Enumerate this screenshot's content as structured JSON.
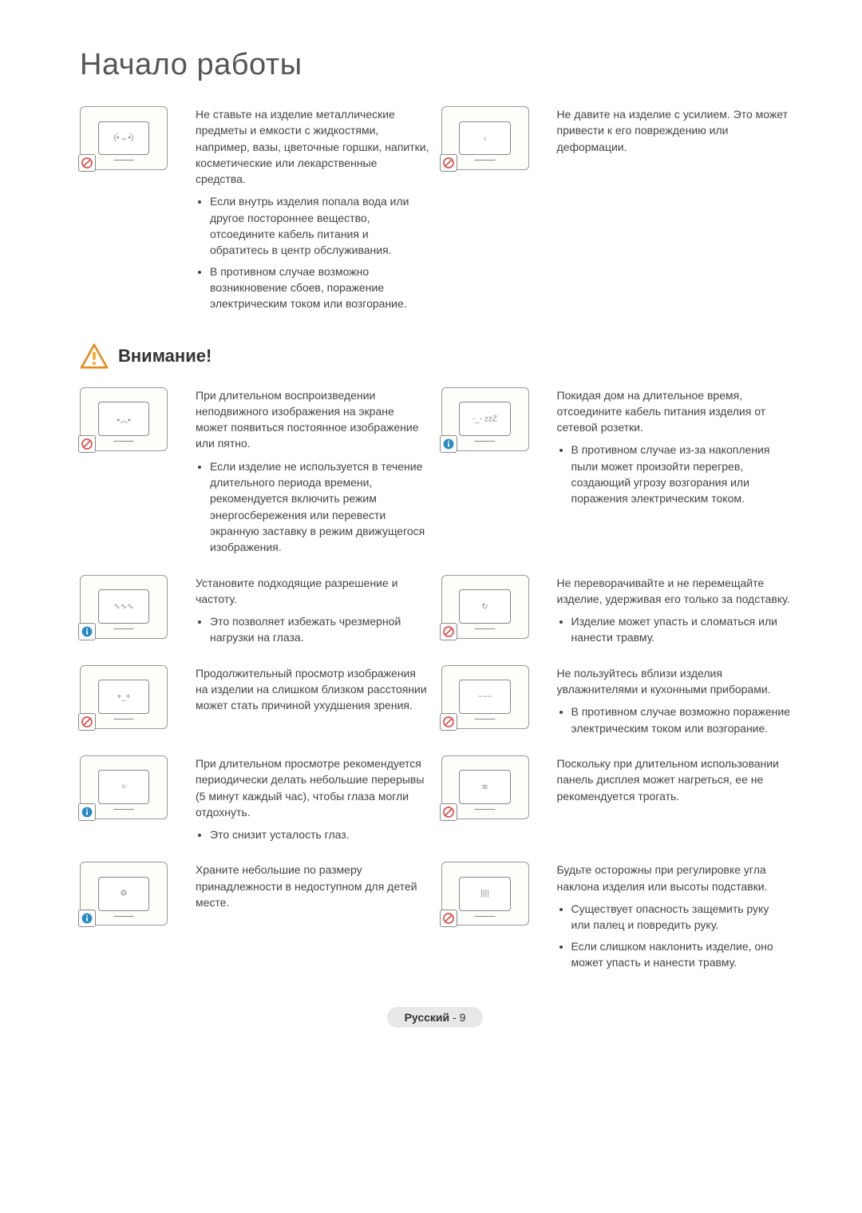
{
  "page_title": "Начало работы",
  "section_caution_title": "Внимание!",
  "footer": {
    "language": "Русский",
    "separator": " - ",
    "page_number": "9"
  },
  "colors": {
    "text": "#444444",
    "title": "#555555",
    "prohibit": "#d9534f",
    "info": "#2b8cc4",
    "warn_border": "#e28b1f",
    "warn_fill": "#f5a623",
    "icon_border": "#999999",
    "footer_bg": "#e8e8e8"
  },
  "rows": [
    {
      "left": {
        "icon": "tv-vase",
        "badge": "prohibit",
        "main": "Не ставьте на изделие металлические предметы и емкости с жидкостями, например, вазы, цветочные горшки, напитки, косметические или лекарственные средства.",
        "bullets": [
          "Если внутрь изделия попала вода или другое постороннее вещество, отсоедините кабель питания и обратитесь в центр обслуживания.",
          "В противном случае возможно возникновение сбоев, поражение электрическим током или возгорание."
        ]
      },
      "right": {
        "icon": "tv-press",
        "badge": "prohibit",
        "main": "Не давите на изделие с усилием. Это может привести к его повреждению или деформации.",
        "bullets": []
      }
    },
    {
      "left": {
        "icon": "tv-ghost",
        "badge": "prohibit",
        "main": "При длительном воспроизведении неподвижного изображения на экране может появиться постоянное изображение или пятно.",
        "bullets": [
          "Если изделие не используется в течение длительного периода времени, рекомендуется включить режим энергосбережения или перевести экранную заставку в режим движущегося изображения."
        ]
      },
      "right": {
        "icon": "tv-sleep",
        "badge": "info",
        "main": "Покидая дом на длительное время, отсоедините кабель питания изделия от сетевой розетки.",
        "bullets": [
          "В противном случае из-за накопления пыли может произойти перегрев, создающий угрозу возгорания или поражения электрическим током."
        ]
      }
    },
    {
      "left": {
        "icon": "tv-resolution",
        "badge": "info",
        "main": "Установите подходящие разрешение и частоту.",
        "bullets": [
          "Это позволяет избежать чрезмерной нагрузки на глаза."
        ]
      },
      "right": {
        "icon": "tv-flip",
        "badge": "prohibit",
        "main": "Не переворачивайте и не перемещайте изделие, удерживая его только за подставку.",
        "bullets": [
          "Изделие может упасть и сломаться или нанести травму."
        ]
      }
    },
    {
      "left": {
        "icon": "tv-closeup",
        "badge": "prohibit",
        "main": "Продолжительный просмотр изображения на изделии на слишком близком расстоянии может стать причиной ухудшения зрения.",
        "bullets": []
      },
      "right": {
        "icon": "tv-humidifier",
        "badge": "prohibit",
        "main": "Не пользуйтесь вблизи изделия увлажнителями и кухонными приборами.",
        "bullets": [
          "В противном случае возможно поражение электрическим током или возгорание."
        ]
      }
    },
    {
      "left": {
        "icon": "tv-rest",
        "badge": "info",
        "main": "При длительном просмотре рекомендуется периодически делать небольшие перерывы (5 минут каждый час), чтобы глаза могли отдохнуть.",
        "bullets": [
          "Это снизит усталость глаз."
        ]
      },
      "right": {
        "icon": "tv-hot",
        "badge": "prohibit",
        "main": "Поскольку при длительном использовании панель дисплея может нагреться, ее не рекомендуется трогать.",
        "bullets": []
      }
    },
    {
      "left": {
        "icon": "tv-kids",
        "badge": "info",
        "main": "Храните небольшие по размеру принадлежности в недоступном для детей месте.",
        "bullets": []
      },
      "right": {
        "icon": "tv-tilt",
        "badge": "prohibit",
        "main": "Будьте осторожны при регулировке угла наклона изделия или высоты подставки.",
        "bullets": [
          "Существует опасность защемить руку или палец и повредить руку.",
          "Если слишком наклонить изделие, оно может упасть и нанести травму."
        ]
      }
    }
  ]
}
